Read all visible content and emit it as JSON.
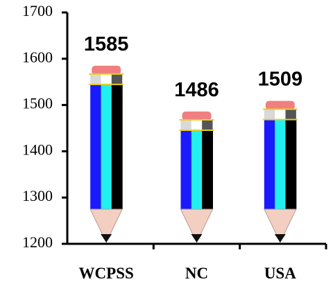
{
  "chart_data": {
    "type": "pencil-bar",
    "categories": [
      "WCPSS",
      "NC",
      "USA"
    ],
    "values": [
      1585,
      1486,
      1509
    ],
    "ylim": [
      1200,
      1700
    ],
    "yticks": [
      1200,
      1300,
      1400,
      1500,
      1600,
      1700
    ],
    "colors": [
      "#1a1aff",
      "#22f0f0",
      "#000000"
    ]
  }
}
